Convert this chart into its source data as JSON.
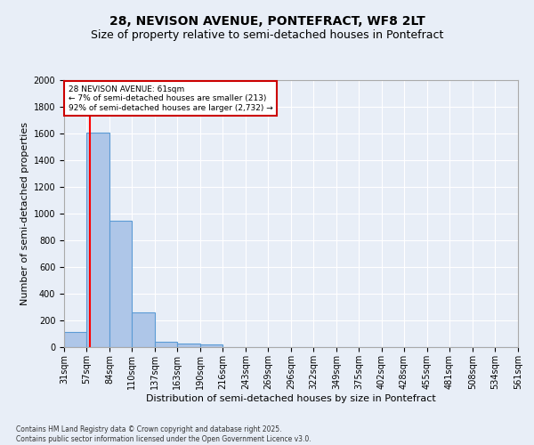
{
  "title": "28, NEVISON AVENUE, PONTEFRACT, WF8 2LT",
  "subtitle": "Size of property relative to semi-detached houses in Pontefract",
  "xlabel": "Distribution of semi-detached houses by size in Pontefract",
  "ylabel": "Number of semi-detached properties",
  "bins": [
    "31sqm",
    "57sqm",
    "84sqm",
    "110sqm",
    "137sqm",
    "163sqm",
    "190sqm",
    "216sqm",
    "243sqm",
    "269sqm",
    "296sqm",
    "322sqm",
    "349sqm",
    "375sqm",
    "402sqm",
    "428sqm",
    "455sqm",
    "481sqm",
    "508sqm",
    "534sqm",
    "561sqm"
  ],
  "bin_edges": [
    31,
    57,
    84,
    110,
    137,
    163,
    190,
    216,
    243,
    269,
    296,
    322,
    349,
    375,
    402,
    428,
    455,
    481,
    508,
    534,
    561
  ],
  "values": [
    113,
    1610,
    950,
    260,
    38,
    30,
    20,
    0,
    0,
    0,
    0,
    0,
    0,
    0,
    0,
    0,
    0,
    0,
    0,
    0
  ],
  "bar_color": "#aec6e8",
  "bar_edge_color": "#5b9bd5",
  "red_line_x": 61,
  "annotation_title": "28 NEVISON AVENUE: 61sqm",
  "annotation_line1": "← 7% of semi-detached houses are smaller (213)",
  "annotation_line2": "92% of semi-detached houses are larger (2,732) →",
  "annotation_box_color": "#ffffff",
  "annotation_box_edge_color": "#cc0000",
  "footer1": "Contains HM Land Registry data © Crown copyright and database right 2025.",
  "footer2": "Contains public sector information licensed under the Open Government Licence v3.0.",
  "ylim": [
    0,
    2000
  ],
  "yticks": [
    0,
    200,
    400,
    600,
    800,
    1000,
    1200,
    1400,
    1600,
    1800,
    2000
  ],
  "background_color": "#e8eef7",
  "grid_color": "#ffffff",
  "title_fontsize": 10,
  "subtitle_fontsize": 9,
  "axis_label_fontsize": 8,
  "tick_fontsize": 7
}
